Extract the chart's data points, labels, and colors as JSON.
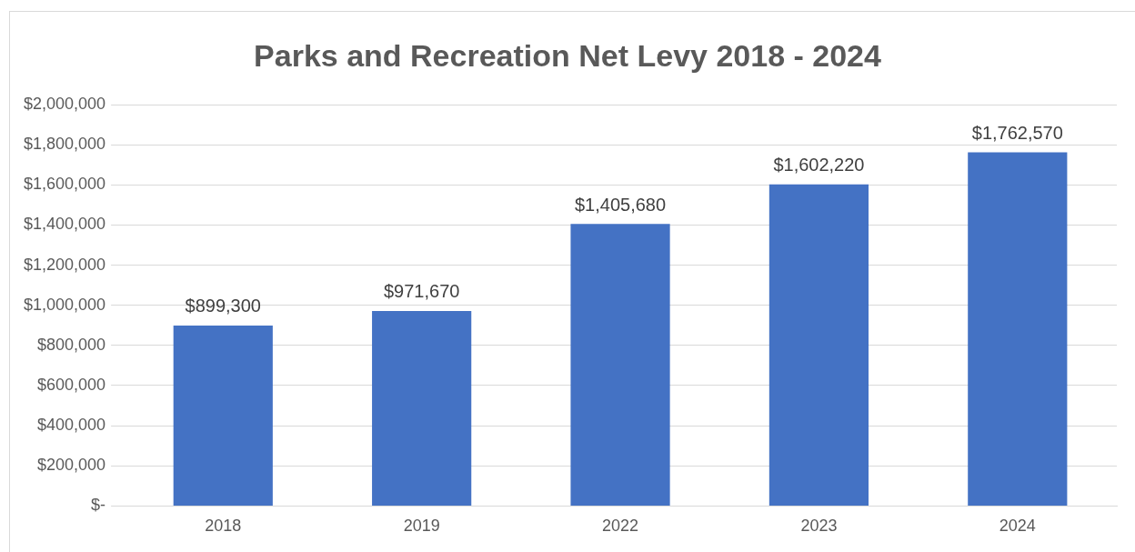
{
  "chart_data": {
    "type": "bar",
    "title": "Parks and Recreation Net Levy 2018 - 2024",
    "categories": [
      "2018",
      "2019",
      "2022",
      "2023",
      "2024"
    ],
    "values": [
      899300,
      971670,
      1405680,
      1602220,
      1762570
    ],
    "value_labels": [
      "$899,300",
      "$971,670",
      "$1,405,680",
      "$1,602,220",
      "$1,762,570"
    ],
    "color": "#4472c4",
    "ylim": [
      0,
      2000000
    ],
    "yticks": [
      {
        "value": 0,
        "label": "$-"
      },
      {
        "value": 200000,
        "label": "$200,000"
      },
      {
        "value": 400000,
        "label": "$400,000"
      },
      {
        "value": 600000,
        "label": "$600,000"
      },
      {
        "value": 800000,
        "label": "$800,000"
      },
      {
        "value": 1000000,
        "label": "$1,000,000"
      },
      {
        "value": 1200000,
        "label": "$1,200,000"
      },
      {
        "value": 1400000,
        "label": "$1,400,000"
      },
      {
        "value": 1600000,
        "label": "$1,600,000"
      },
      {
        "value": 1800000,
        "label": "$1,800,000"
      },
      {
        "value": 2000000,
        "label": "$2,000,000"
      }
    ],
    "grid": "y",
    "legend": false
  }
}
